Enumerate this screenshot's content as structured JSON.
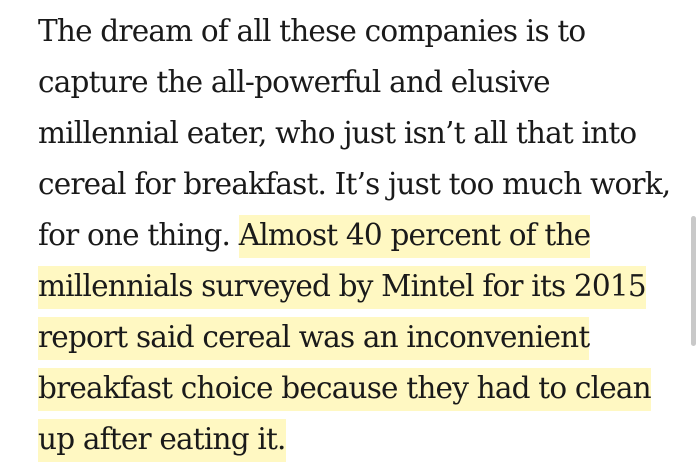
{
  "article": {
    "lines": [
      "The dream of all these companies is to",
      "capture the all-powerful and elusive",
      "millennial eater, who just isn’t all that into",
      "cereal for breakfast. It’s just too much work,",
      "for one thing. ",
      "Almost 40 percent of the",
      "millennials surveyed by Mintel for its 2015",
      "report said cereal was an inconvenient",
      "breakfast choice because they had to clean",
      "up after eating it."
    ]
  },
  "colors": {
    "text": "#1a1a1a",
    "highlight": "#fff8c2",
    "scrollbar": "#c9c9c9"
  }
}
